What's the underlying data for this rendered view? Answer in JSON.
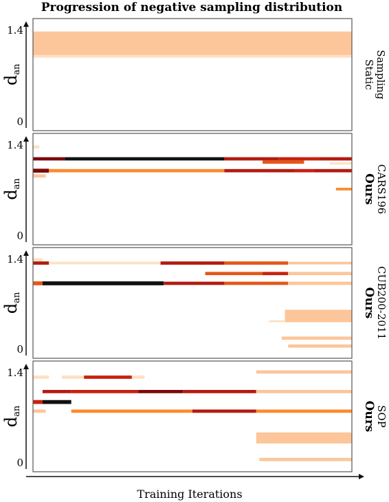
{
  "chart_data": {
    "type": "heatmap",
    "title": "Progression of negative sampling distribution",
    "xlabel": "Training Iterations",
    "ylabel_main": "d",
    "ylabel_sub": "an",
    "x_range": [
      0,
      1
    ],
    "colors": {
      "light": "#fde0c5",
      "pale": "#fcc69a",
      "orange": "#fb8b2e",
      "deep": "#e4571a",
      "red": "#c8200e",
      "dark": "#b31b10",
      "crimson": "#7a0a0a",
      "black": "#111111"
    },
    "panels": [
      {
        "yticks": [
          "1.4",
          "0"
        ],
        "ylim": [
          0,
          1.4
        ],
        "label": [
          "Static",
          "Sampling"
        ],
        "label_bold": false,
        "bands": [
          {
            "x0": 0.0,
            "x1": 1.0,
            "y": 1.17,
            "h": 0.36,
            "color": "pale"
          },
          {
            "x0": 0.0,
            "x1": 1.0,
            "y": 0.97,
            "h": 0.03,
            "color": "light"
          }
        ]
      },
      {
        "yticks": [
          "1.4",
          "0"
        ],
        "ylim": [
          0,
          1.4
        ],
        "label": [
          "Ours",
          "CARS196"
        ],
        "label_bold": true,
        "bands": [
          {
            "x0": 0.0,
            "x1": 0.02,
            "y": 1.34,
            "h": 0.05,
            "color": "light"
          },
          {
            "x0": 0.0,
            "x1": 0.1,
            "y": 1.16,
            "h": 0.05,
            "color": "crimson"
          },
          {
            "x0": 0.1,
            "x1": 0.6,
            "y": 1.16,
            "h": 0.05,
            "color": "black"
          },
          {
            "x0": 0.6,
            "x1": 0.77,
            "y": 1.16,
            "h": 0.05,
            "color": "dark"
          },
          {
            "x0": 0.77,
            "x1": 0.9,
            "y": 1.16,
            "h": 0.05,
            "color": "red"
          },
          {
            "x0": 0.9,
            "x1": 1.0,
            "y": 1.16,
            "h": 0.05,
            "color": "dark"
          },
          {
            "x0": 0.72,
            "x1": 0.85,
            "y": 1.11,
            "h": 0.05,
            "color": "deep"
          },
          {
            "x0": 0.93,
            "x1": 1.0,
            "y": 1.09,
            "h": 0.03,
            "color": "light"
          },
          {
            "x0": 0.0,
            "x1": 0.05,
            "y": 0.98,
            "h": 0.06,
            "color": "crimson"
          },
          {
            "x0": 0.05,
            "x1": 0.6,
            "y": 0.98,
            "h": 0.05,
            "color": "orange"
          },
          {
            "x0": 0.6,
            "x1": 0.82,
            "y": 0.98,
            "h": 0.05,
            "color": "dark"
          },
          {
            "x0": 0.82,
            "x1": 0.88,
            "y": 0.98,
            "h": 0.05,
            "color": "red"
          },
          {
            "x0": 0.88,
            "x1": 1.0,
            "y": 0.98,
            "h": 0.05,
            "color": "dark"
          },
          {
            "x0": 0.0,
            "x1": 0.04,
            "y": 0.9,
            "h": 0.05,
            "color": "pale"
          },
          {
            "x0": 0.95,
            "x1": 1.0,
            "y": 0.7,
            "h": 0.04,
            "color": "orange"
          }
        ]
      },
      {
        "yticks": [
          "1.4",
          "0"
        ],
        "ylim": [
          0,
          1.4
        ],
        "label": [
          "Ours",
          "CUB200-2011"
        ],
        "label_bold": true,
        "bands": [
          {
            "x0": 0.0,
            "x1": 0.03,
            "y": 1.36,
            "h": 0.05,
            "color": "light"
          },
          {
            "x0": 0.0,
            "x1": 0.05,
            "y": 1.31,
            "h": 0.05,
            "color": "dark"
          },
          {
            "x0": 0.05,
            "x1": 0.4,
            "y": 1.31,
            "h": 0.04,
            "color": "light"
          },
          {
            "x0": 0.4,
            "x1": 0.6,
            "y": 1.31,
            "h": 0.05,
            "color": "dark"
          },
          {
            "x0": 0.6,
            "x1": 0.8,
            "y": 1.31,
            "h": 0.05,
            "color": "deep"
          },
          {
            "x0": 0.8,
            "x1": 1.0,
            "y": 1.31,
            "h": 0.04,
            "color": "pale"
          },
          {
            "x0": 0.54,
            "x1": 0.72,
            "y": 1.15,
            "h": 0.05,
            "color": "deep"
          },
          {
            "x0": 0.72,
            "x1": 0.8,
            "y": 1.15,
            "h": 0.05,
            "color": "red"
          },
          {
            "x0": 0.8,
            "x1": 1.0,
            "y": 1.15,
            "h": 0.05,
            "color": "pale"
          },
          {
            "x0": 0.0,
            "x1": 0.03,
            "y": 1.0,
            "h": 0.06,
            "color": "deep"
          },
          {
            "x0": 0.03,
            "x1": 0.41,
            "y": 1.0,
            "h": 0.06,
            "color": "black"
          },
          {
            "x0": 0.41,
            "x1": 0.6,
            "y": 1.0,
            "h": 0.05,
            "color": "dark"
          },
          {
            "x0": 0.6,
            "x1": 0.8,
            "y": 1.0,
            "h": 0.05,
            "color": "deep"
          },
          {
            "x0": 0.8,
            "x1": 1.0,
            "y": 1.0,
            "h": 0.05,
            "color": "pale"
          },
          {
            "x0": 0.79,
            "x1": 1.0,
            "y": 0.5,
            "h": 0.19,
            "color": "pale"
          },
          {
            "x0": 0.74,
            "x1": 0.79,
            "y": 0.42,
            "h": 0.03,
            "color": "light"
          },
          {
            "x0": 0.78,
            "x1": 1.0,
            "y": 0.16,
            "h": 0.05,
            "color": "pale"
          },
          {
            "x0": 0.8,
            "x1": 1.0,
            "y": 0.04,
            "h": 0.05,
            "color": "pale"
          }
        ]
      },
      {
        "yticks": [
          "1.4",
          "0"
        ],
        "ylim": [
          0,
          1.4
        ],
        "label": [
          "Ours",
          "SOP"
        ],
        "label_bold": true,
        "bands": [
          {
            "x0": 0.0,
            "x1": 0.05,
            "y": 1.3,
            "h": 0.05,
            "color": "light"
          },
          {
            "x0": 0.09,
            "x1": 0.16,
            "y": 1.3,
            "h": 0.05,
            "color": "light"
          },
          {
            "x0": 0.16,
            "x1": 0.31,
            "y": 1.3,
            "h": 0.05,
            "color": "red"
          },
          {
            "x0": 0.31,
            "x1": 0.35,
            "y": 1.3,
            "h": 0.05,
            "color": "light"
          },
          {
            "x0": 0.7,
            "x1": 1.0,
            "y": 1.38,
            "h": 0.05,
            "color": "pale"
          },
          {
            "x0": 0.03,
            "x1": 0.12,
            "y": 1.08,
            "h": 0.05,
            "color": "dark"
          },
          {
            "x0": 0.12,
            "x1": 0.33,
            "y": 1.08,
            "h": 0.05,
            "color": "red"
          },
          {
            "x0": 0.33,
            "x1": 0.47,
            "y": 1.08,
            "h": 0.05,
            "color": "crimson"
          },
          {
            "x0": 0.47,
            "x1": 0.7,
            "y": 1.08,
            "h": 0.05,
            "color": "dark"
          },
          {
            "x0": 0.7,
            "x1": 1.0,
            "y": 1.08,
            "h": 0.05,
            "color": "pale"
          },
          {
            "x0": 0.03,
            "x1": 0.12,
            "y": 0.92,
            "h": 0.06,
            "color": "black"
          },
          {
            "x0": 0.0,
            "x1": 0.03,
            "y": 0.92,
            "h": 0.06,
            "color": "red"
          },
          {
            "x0": 0.0,
            "x1": 0.04,
            "y": 0.78,
            "h": 0.05,
            "color": "pale"
          },
          {
            "x0": 0.12,
            "x1": 0.5,
            "y": 0.78,
            "h": 0.05,
            "color": "orange"
          },
          {
            "x0": 0.5,
            "x1": 0.7,
            "y": 0.78,
            "h": 0.05,
            "color": "dark"
          },
          {
            "x0": 0.7,
            "x1": 1.0,
            "y": 0.78,
            "h": 0.05,
            "color": "orange"
          },
          {
            "x0": 0.7,
            "x1": 1.0,
            "y": 0.37,
            "h": 0.17,
            "color": "pale"
          },
          {
            "x0": 0.71,
            "x1": 1.0,
            "y": 0.04,
            "h": 0.05,
            "color": "pale"
          }
        ]
      }
    ]
  }
}
